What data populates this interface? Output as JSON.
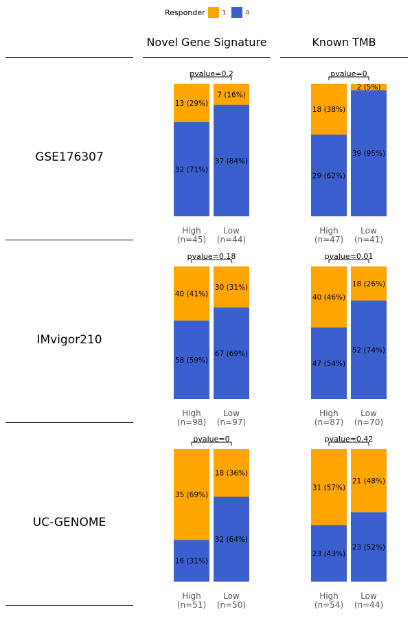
{
  "legend": {
    "title": "Responder",
    "items": [
      {
        "label": "1",
        "color": "#FFA500"
      },
      {
        "label": "0",
        "color": "#3B5FCE"
      }
    ]
  },
  "columns": [
    "Novel Gene Signature",
    "Known TMB"
  ],
  "rows": [
    "GSE176307",
    "IMvigor210",
    "UC-GENOME"
  ],
  "colors": {
    "responder_1": "#FFA500",
    "responder_0": "#3B5FCE"
  },
  "chart_data": {
    "type": "bar",
    "stacked": "proportion",
    "panels": [
      {
        "row": "GSE176307",
        "column": "Novel Gene Signature",
        "pvalue": "pvalue=0.2",
        "groups": [
          {
            "label": "High",
            "n": "(n=45)",
            "responder_1": 13,
            "responder_1_label": "13 (29%)",
            "responder_0": 32,
            "responder_0_label": "32 (71%)"
          },
          {
            "label": "Low",
            "n": "(n=44)",
            "responder_1": 7,
            "responder_1_label": "7 (16%)",
            "responder_0": 37,
            "responder_0_label": "37 (84%)"
          }
        ]
      },
      {
        "row": "GSE176307",
        "column": "Known TMB",
        "pvalue": "pvalue=0",
        "groups": [
          {
            "label": "High",
            "n": "(n=47)",
            "responder_1": 18,
            "responder_1_label": "18 (38%)",
            "responder_0": 29,
            "responder_0_label": "29 (62%)"
          },
          {
            "label": "Low",
            "n": "(n=41)",
            "responder_1": 2,
            "responder_1_label": "2 (5%)",
            "responder_0": 39,
            "responder_0_label": "39 (95%)"
          }
        ]
      },
      {
        "row": "IMvigor210",
        "column": "Novel Gene Signature",
        "pvalue": "pvalue=0.18",
        "groups": [
          {
            "label": "High",
            "n": "(n=98)",
            "responder_1": 40,
            "responder_1_label": "40 (41%)",
            "responder_0": 58,
            "responder_0_label": "58 (59%)"
          },
          {
            "label": "Low",
            "n": "(n=97)",
            "responder_1": 30,
            "responder_1_label": "30 (31%)",
            "responder_0": 67,
            "responder_0_label": "67 (69%)"
          }
        ]
      },
      {
        "row": "IMvigor210",
        "column": "Known TMB",
        "pvalue": "pvalue=0.01",
        "groups": [
          {
            "label": "High",
            "n": "(n=87)",
            "responder_1": 40,
            "responder_1_label": "40 (46%)",
            "responder_0": 47,
            "responder_0_label": "47 (54%)"
          },
          {
            "label": "Low",
            "n": "(n=70)",
            "responder_1": 18,
            "responder_1_label": "18 (26%)",
            "responder_0": 52,
            "responder_0_label": "52 (74%)"
          }
        ]
      },
      {
        "row": "UC-GENOME",
        "column": "Novel Gene Signature",
        "pvalue": "pvalue=0",
        "groups": [
          {
            "label": "High",
            "n": "(n=51)",
            "responder_1": 35,
            "responder_1_label": "35 (69%)",
            "responder_0": 16,
            "responder_0_label": "16 (31%)"
          },
          {
            "label": "Low",
            "n": "(n=50)",
            "responder_1": 18,
            "responder_1_label": "18 (36%)",
            "responder_0": 32,
            "responder_0_label": "32 (64%)"
          }
        ]
      },
      {
        "row": "UC-GENOME",
        "column": "Known TMB",
        "pvalue": "pvalue=0.42",
        "groups": [
          {
            "label": "High",
            "n": "(n=54)",
            "responder_1": 31,
            "responder_1_label": "31 (57%)",
            "responder_0": 23,
            "responder_0_label": "23 (43%)"
          },
          {
            "label": "Low",
            "n": "(n=44)",
            "responder_1": 21,
            "responder_1_label": "21 (48%)",
            "responder_0": 23,
            "responder_0_label": "23 (52%)"
          }
        ]
      }
    ]
  }
}
